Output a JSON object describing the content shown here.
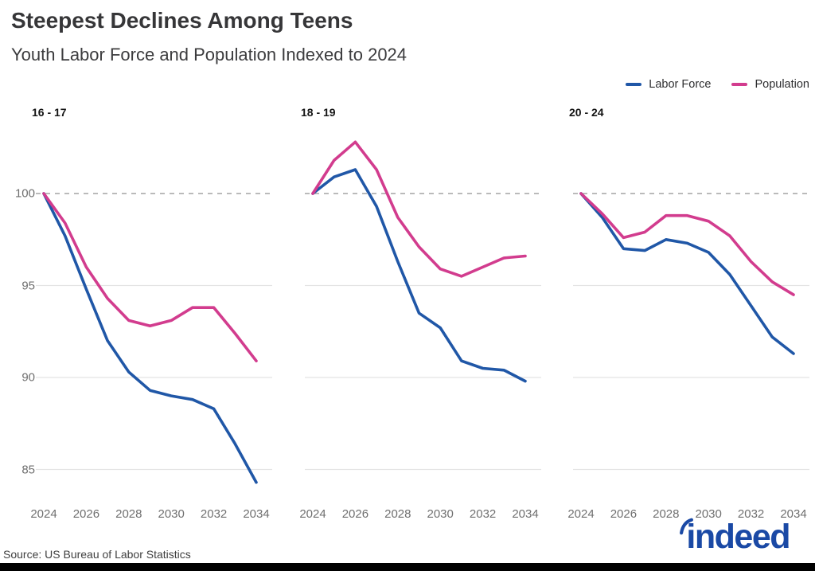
{
  "header": {
    "title": "Steepest Declines Among Teens",
    "subtitle": "Youth Labor Force and Population Indexed to 2024"
  },
  "legend": [
    {
      "label": "Labor Force",
      "color": "#2057A7"
    },
    {
      "label": "Population",
      "color": "#D23C8E"
    }
  ],
  "chart_data": {
    "type": "line",
    "x": [
      2024,
      2025,
      2026,
      2027,
      2028,
      2029,
      2030,
      2031,
      2032,
      2033,
      2034
    ],
    "xtick_labels": [
      "2024",
      "2026",
      "2028",
      "2030",
      "2032",
      "2034"
    ],
    "yticks": [
      100,
      95,
      90,
      85
    ],
    "ytick_labels": [
      "100",
      "95",
      "90",
      "85"
    ],
    "baseline_value": 100,
    "ylim": [
      83.5,
      103.5
    ],
    "grid": "horizontal",
    "legend_position": "top-right",
    "panels": [
      {
        "label": "16 - 17",
        "series": [
          {
            "name": "Labor Force",
            "color": "#2057A7",
            "values": [
              100,
              97.7,
              94.8,
              92.0,
              90.3,
              89.3,
              89.0,
              88.8,
              88.3,
              86.4,
              84.3
            ]
          },
          {
            "name": "Population",
            "color": "#D23C8E",
            "values": [
              100,
              98.4,
              96.0,
              94.3,
              93.1,
              92.8,
              93.1,
              93.8,
              93.8,
              92.4,
              90.9
            ]
          }
        ]
      },
      {
        "label": "18 - 19",
        "series": [
          {
            "name": "Labor Force",
            "color": "#2057A7",
            "values": [
              100,
              100.9,
              101.3,
              99.3,
              96.3,
              93.5,
              92.7,
              90.9,
              90.5,
              90.4,
              89.8
            ]
          },
          {
            "name": "Population",
            "color": "#D23C8E",
            "values": [
              100,
              101.8,
              102.8,
              101.3,
              98.7,
              97.1,
              95.9,
              95.5,
              96.0,
              96.5,
              96.6
            ]
          }
        ]
      },
      {
        "label": "20 - 24",
        "series": [
          {
            "name": "Labor Force",
            "color": "#2057A7",
            "values": [
              100,
              98.7,
              97.0,
              96.9,
              97.5,
              97.3,
              96.8,
              95.6,
              93.9,
              92.2,
              91.3
            ]
          },
          {
            "name": "Population",
            "color": "#D23C8E",
            "values": [
              100,
              98.9,
              97.6,
              97.9,
              98.8,
              98.8,
              98.5,
              97.7,
              96.3,
              95.2,
              94.5
            ]
          }
        ]
      }
    ]
  },
  "source": "Source: US Bureau of Labor Statistics",
  "logo_text": "indeed",
  "colors": {
    "labor_force": "#2057A7",
    "population": "#D23C8E",
    "baseline_dash": "#a3a3a3",
    "gridline": "#e4e4e4",
    "logo_blue": "#1a49a5",
    "bottom_bar": "#000000"
  }
}
